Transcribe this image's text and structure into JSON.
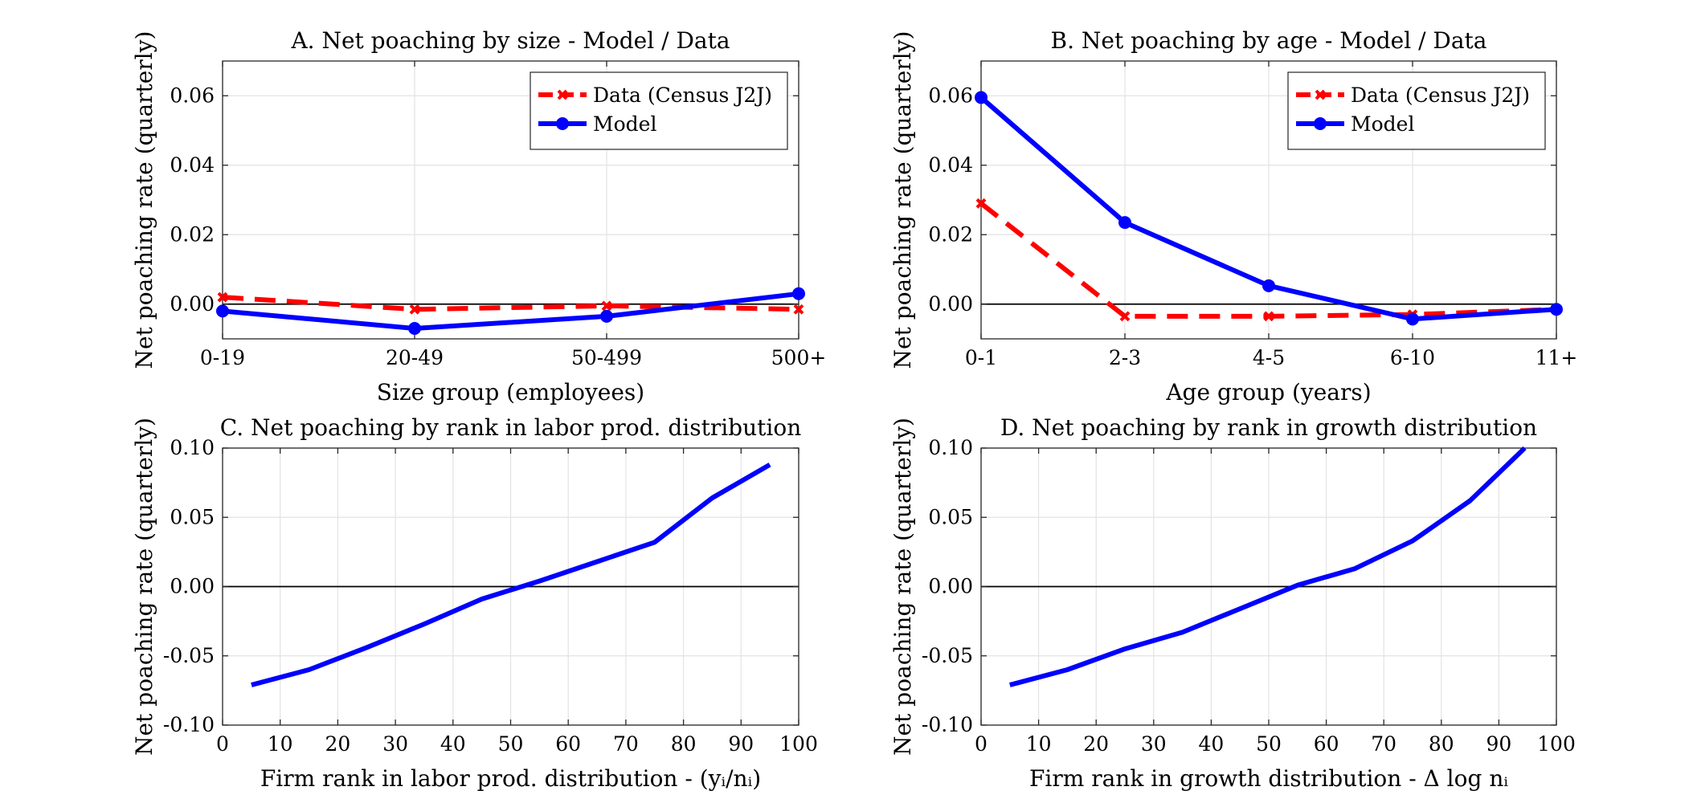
{
  "chart_data": [
    {
      "id": "A",
      "type": "line",
      "title": "A. Net poaching by size - Model / Data",
      "xlabel": "Size group (employees)",
      "ylabel": "Net poaching rate (quarterly)",
      "categories": [
        "0-19",
        "20-49",
        "50-499",
        "500+"
      ],
      "yticks": [
        0.0,
        0.02,
        0.04,
        0.06
      ],
      "ytick_labels": [
        "0.00",
        "0.02",
        "0.04",
        "0.06"
      ],
      "ylim": [
        -0.01,
        0.07
      ],
      "zero_line": true,
      "grid": true,
      "legend": "top-right",
      "series": [
        {
          "name": "Data (Census J2J)",
          "style": "dashed",
          "marker": "x",
          "color": "#ff0000",
          "values": [
            0.002,
            -0.0015,
            -0.0005,
            -0.0015
          ]
        },
        {
          "name": "Model",
          "style": "solid",
          "marker": "o",
          "color": "#0000ff",
          "values": [
            -0.002,
            -0.007,
            -0.0035,
            0.003
          ]
        }
      ]
    },
    {
      "id": "B",
      "type": "line",
      "title": "B. Net poaching by age - Model / Data",
      "xlabel": "Age group (years)",
      "ylabel": "Net poaching rate (quarterly)",
      "categories": [
        "0-1",
        "2-3",
        "4-5",
        "6-10",
        "11+"
      ],
      "yticks": [
        0.0,
        0.02,
        0.04,
        0.06
      ],
      "ytick_labels": [
        "0.00",
        "0.02",
        "0.04",
        "0.06"
      ],
      "ylim": [
        -0.01,
        0.07
      ],
      "zero_line": true,
      "grid": true,
      "legend": "top-right",
      "series": [
        {
          "name": "Data (Census J2J)",
          "style": "dashed",
          "marker": "x",
          "color": "#ff0000",
          "values": [
            0.029,
            -0.0035,
            -0.0035,
            -0.003,
            -0.0015
          ]
        },
        {
          "name": "Model",
          "style": "solid",
          "marker": "o",
          "color": "#0000ff",
          "values": [
            0.0595,
            0.0235,
            0.0053,
            -0.0043,
            -0.0015
          ]
        }
      ]
    },
    {
      "id": "C",
      "type": "line",
      "title": "C. Net poaching by rank in labor prod. distribution",
      "xlabel": "Firm rank in labor prod. distribution - (yᵢ/nᵢ)",
      "ylabel": "Net poaching rate (quarterly)",
      "xlim": [
        0,
        100
      ],
      "xticks": [
        0,
        10,
        20,
        30,
        40,
        50,
        60,
        70,
        80,
        90,
        100
      ],
      "xtick_labels": [
        "0",
        "10",
        "20",
        "30",
        "40",
        "50",
        "60",
        "70",
        "80",
        "90",
        "100"
      ],
      "yticks": [
        -0.1,
        -0.05,
        0.0,
        0.05,
        0.1
      ],
      "ytick_labels": [
        "-0.10",
        "-0.05",
        "0.00",
        "0.05",
        "0.10"
      ],
      "ylim": [
        -0.1,
        0.1
      ],
      "zero_line": true,
      "grid": true,
      "series": [
        {
          "style": "solid",
          "color": "#0000ff",
          "x": [
            5,
            15,
            25,
            35,
            45,
            55,
            65,
            75,
            85,
            95
          ],
          "values": [
            -0.071,
            -0.06,
            -0.044,
            -0.027,
            -0.009,
            0.004,
            0.018,
            0.032,
            0.064,
            0.088
          ]
        }
      ]
    },
    {
      "id": "D",
      "type": "line",
      "title": "D. Net poaching by rank in growth distribution",
      "xlabel": "Firm rank in growth distribution - Δ log nᵢ",
      "ylabel": "Net poaching rate (quarterly)",
      "xlim": [
        0,
        100
      ],
      "xticks": [
        0,
        10,
        20,
        30,
        40,
        50,
        60,
        70,
        80,
        90,
        100
      ],
      "xtick_labels": [
        "0",
        "10",
        "20",
        "30",
        "40",
        "50",
        "60",
        "70",
        "80",
        "90",
        "100"
      ],
      "yticks": [
        -0.1,
        -0.05,
        0.0,
        0.05,
        0.1
      ],
      "ytick_labels": [
        "-0.10",
        "-0.05",
        "0.00",
        "0.05",
        "0.10"
      ],
      "ylim": [
        -0.1,
        0.1
      ],
      "zero_line": true,
      "grid": true,
      "series": [
        {
          "style": "solid",
          "color": "#0000ff",
          "x": [
            5,
            15,
            25,
            35,
            45,
            55,
            65,
            75,
            85,
            94.5
          ],
          "values": [
            -0.071,
            -0.06,
            -0.045,
            -0.033,
            -0.016,
            0.001,
            0.013,
            0.033,
            0.062,
            0.1
          ]
        }
      ]
    }
  ]
}
